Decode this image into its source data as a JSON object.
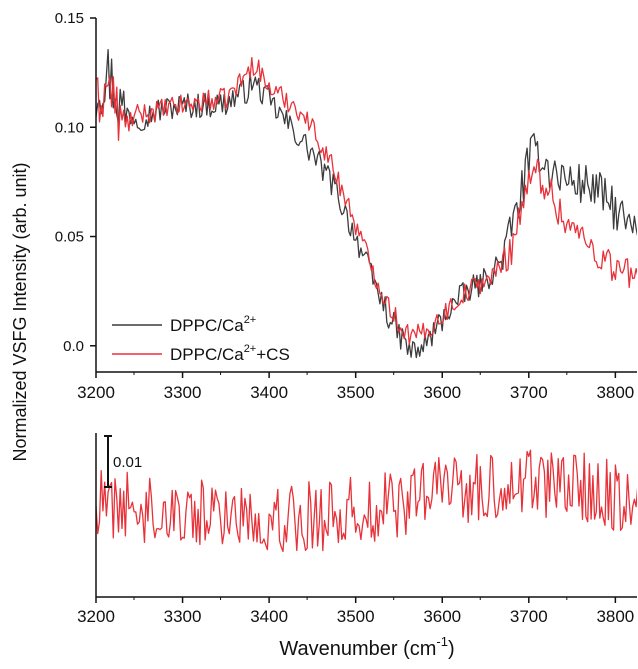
{
  "chart_data": [
    {
      "type": "line",
      "panel": "top",
      "ylabel": "Normalized VSFG Intensity (arb. unit)",
      "xlim": [
        3200,
        3825
      ],
      "ylim": [
        -0.012,
        0.15
      ],
      "yticks": [
        "0.0",
        "0.05",
        "0.10",
        "0.15"
      ],
      "ytick_values": [
        0.0,
        0.05,
        0.1,
        0.15
      ],
      "xticks": [
        "3200",
        "3300",
        "3400",
        "3500",
        "3600",
        "3700",
        "3800"
      ],
      "xtick_values": [
        3200,
        3300,
        3400,
        3500,
        3600,
        3700,
        3800
      ],
      "legend_position": "bottom-left",
      "series": [
        {
          "name": "DPPC/Ca",
          "name_sup": "2+",
          "name_suffix": "",
          "color": "#3c3c3c",
          "x": [
            3200,
            3215,
            3230,
            3250,
            3275,
            3300,
            3325,
            3350,
            3365,
            3375,
            3380,
            3390,
            3400,
            3425,
            3450,
            3475,
            3500,
            3520,
            3540,
            3555,
            3565,
            3575,
            3590,
            3610,
            3630,
            3650,
            3670,
            3690,
            3700,
            3710,
            3725,
            3750,
            3775,
            3800,
            3825
          ],
          "y": [
            0.118,
            0.125,
            0.108,
            0.104,
            0.108,
            0.11,
            0.11,
            0.111,
            0.115,
            0.117,
            0.121,
            0.117,
            0.112,
            0.1,
            0.088,
            0.073,
            0.05,
            0.03,
            0.012,
            0.002,
            -0.003,
            -0.002,
            0.006,
            0.018,
            0.025,
            0.03,
            0.04,
            0.068,
            0.085,
            0.09,
            0.08,
            0.075,
            0.073,
            0.062,
            0.05
          ],
          "noise": 0.006
        },
        {
          "name": "DPPC/Ca",
          "name_sup": "2+",
          "name_suffix": "+CS",
          "color": "#e8323a",
          "x": [
            3200,
            3215,
            3230,
            3250,
            3275,
            3300,
            3325,
            3350,
            3365,
            3375,
            3385,
            3395,
            3410,
            3430,
            3450,
            3470,
            3490,
            3510,
            3530,
            3550,
            3565,
            3580,
            3600,
            3620,
            3640,
            3660,
            3680,
            3695,
            3710,
            3725,
            3740,
            3760,
            3780,
            3800,
            3825
          ],
          "y": [
            0.11,
            0.12,
            0.1,
            0.106,
            0.108,
            0.11,
            0.112,
            0.113,
            0.12,
            0.125,
            0.13,
            0.12,
            0.115,
            0.11,
            0.1,
            0.085,
            0.066,
            0.045,
            0.025,
            0.01,
            0.004,
            0.006,
            0.014,
            0.022,
            0.028,
            0.032,
            0.045,
            0.07,
            0.08,
            0.07,
            0.058,
            0.05,
            0.042,
            0.036,
            0.03
          ],
          "noise": 0.005
        }
      ]
    },
    {
      "type": "line",
      "panel": "bottom",
      "xlabel": "Wavenumber (cm",
      "xlabel_sup": "-1",
      "xlabel_suffix": ")",
      "xlim": [
        3200,
        3825
      ],
      "xticks": [
        "3200",
        "3300",
        "3400",
        "3500",
        "3600",
        "3700",
        "3800"
      ],
      "xtick_values": [
        3200,
        3300,
        3400,
        3500,
        3600,
        3700,
        3800
      ],
      "scale_bar_label": "0.01",
      "scale_bar_value": 0.01,
      "series": [
        {
          "color": "#e8323a",
          "x": [
            3200,
            3250,
            3300,
            3350,
            3400,
            3450,
            3500,
            3550,
            3580,
            3600,
            3620,
            3650,
            3680,
            3700,
            3720,
            3750,
            3780,
            3800,
            3825
          ],
          "y": [
            0.0055,
            0.005,
            0.0045,
            0.0042,
            0.004,
            0.004,
            0.0045,
            0.0055,
            0.0065,
            0.0075,
            0.0075,
            0.007,
            0.0078,
            0.0085,
            0.008,
            0.0075,
            0.007,
            0.0065,
            0.006
          ],
          "noise": 0.0042
        }
      ]
    }
  ]
}
